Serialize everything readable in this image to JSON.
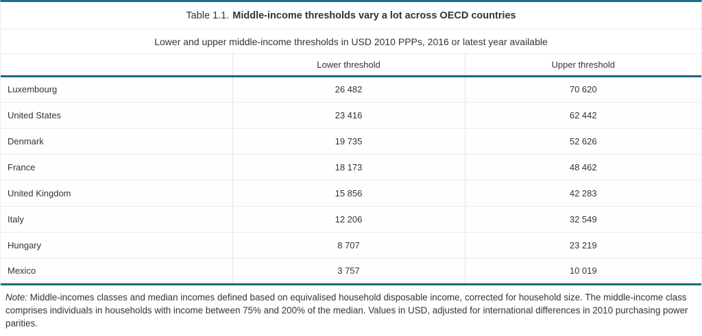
{
  "header": {
    "title_prefix": "Table 1.1.",
    "title_bold": "Middle-income thresholds vary a lot across OECD countries",
    "subtitle": "Lower and upper middle-income thresholds in USD 2010 PPPs, 2016 or latest year available"
  },
  "table": {
    "column_headers": {
      "country": "",
      "lower": "Lower threshold",
      "upper": "Upper threshold"
    },
    "rows": [
      {
        "country": "Luxembourg",
        "lower": "26 482",
        "upper": "70 620"
      },
      {
        "country": "United States",
        "lower": "23 416",
        "upper": "62 442"
      },
      {
        "country": "Denmark",
        "lower": "19 735",
        "upper": "52 626"
      },
      {
        "country": "France",
        "lower": "18 173",
        "upper": "48 462"
      },
      {
        "country": "United Kingdom",
        "lower": "15 856",
        "upper": "42 283"
      },
      {
        "country": "Italy",
        "lower": "12 206",
        "upper": "32 549"
      },
      {
        "country": "Hungary",
        "lower": "8 707",
        "upper": "23 219"
      },
      {
        "country": "Mexico",
        "lower": "3 757",
        "upper": "10 019"
      }
    ]
  },
  "note": {
    "label": "Note:",
    "text": " Middle-incomes classes and median incomes defined based on equivalised household disposable income, corrected for household size. The middle-income class comprises individuals in households with income between 75% and 200% of the median. Values in USD, adjusted for international differences in 2010 purchasing power parities."
  },
  "colors": {
    "accent_top_border": "#1c6e8e",
    "accent_header_underline": "#1a6490",
    "accent_bottom_border": "#176c78",
    "grid_border": "#ececec",
    "text": "#333333"
  }
}
